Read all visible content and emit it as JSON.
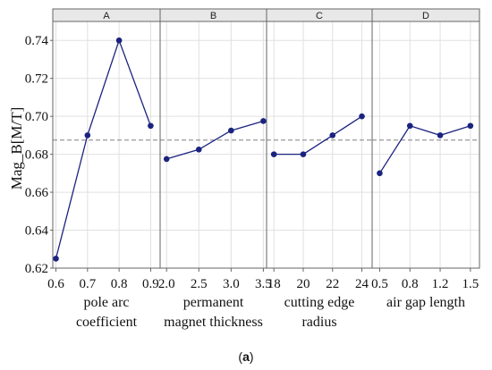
{
  "chart_data": {
    "type": "line",
    "ylabel": "Mag_B[M/T]",
    "ylim": [
      0.62,
      0.75
    ],
    "yticks": [
      "0.62",
      "0.64",
      "0.66",
      "0.68",
      "0.70",
      "0.72",
      "0.74"
    ],
    "reference_line": 0.6875,
    "grid": true,
    "colors": {
      "series": "#1a237e",
      "reference": "#808080",
      "strip": "#e8e8e8",
      "frame": "#666666",
      "grid": "#e0e0e0"
    },
    "panels": [
      {
        "strip": "A",
        "x": [
          0.6,
          0.7,
          0.8,
          0.9
        ],
        "xticks": [
          "0.6",
          "0.7",
          "0.8",
          "0.9"
        ],
        "xlim": [
          0.59,
          0.93
        ],
        "xlabel_lines": [
          "pole arc",
          "coefficient"
        ],
        "values": [
          0.625,
          0.69,
          0.74,
          0.695
        ]
      },
      {
        "strip": "B",
        "x": [
          2.0,
          2.5,
          3.0,
          3.5
        ],
        "xticks": [
          "2.0",
          "2.5",
          "3.0",
          "3.5"
        ],
        "xlim": [
          1.9,
          3.55
        ],
        "xlabel_lines": [
          "permanent",
          "magnet thickness"
        ],
        "values": [
          0.6775,
          0.6825,
          0.6925,
          0.6975
        ]
      },
      {
        "strip": "C",
        "x": [
          18,
          20,
          22,
          24
        ],
        "xticks": [
          "18",
          "20",
          "22",
          "24"
        ],
        "xlim": [
          17.5,
          24.7
        ],
        "xlabel_lines": [
          "cutting edge",
          "radius"
        ],
        "values": [
          0.68,
          0.68,
          0.69,
          0.7
        ]
      },
      {
        "strip": "D",
        "x": [
          0.5,
          0.8,
          1.2,
          1.5
        ],
        "xticks": [
          "0.5",
          "0.8",
          "1.2",
          "1.5"
        ],
        "x_positions": [
          0,
          1,
          2,
          3
        ],
        "xlim": [
          -0.25,
          3.3
        ],
        "xlabel_lines": [
          "air gap length"
        ],
        "values": [
          0.67,
          0.695,
          0.69,
          0.695
        ]
      }
    ]
  },
  "caption": {
    "open": "(",
    "label": "a",
    "close": ")"
  }
}
